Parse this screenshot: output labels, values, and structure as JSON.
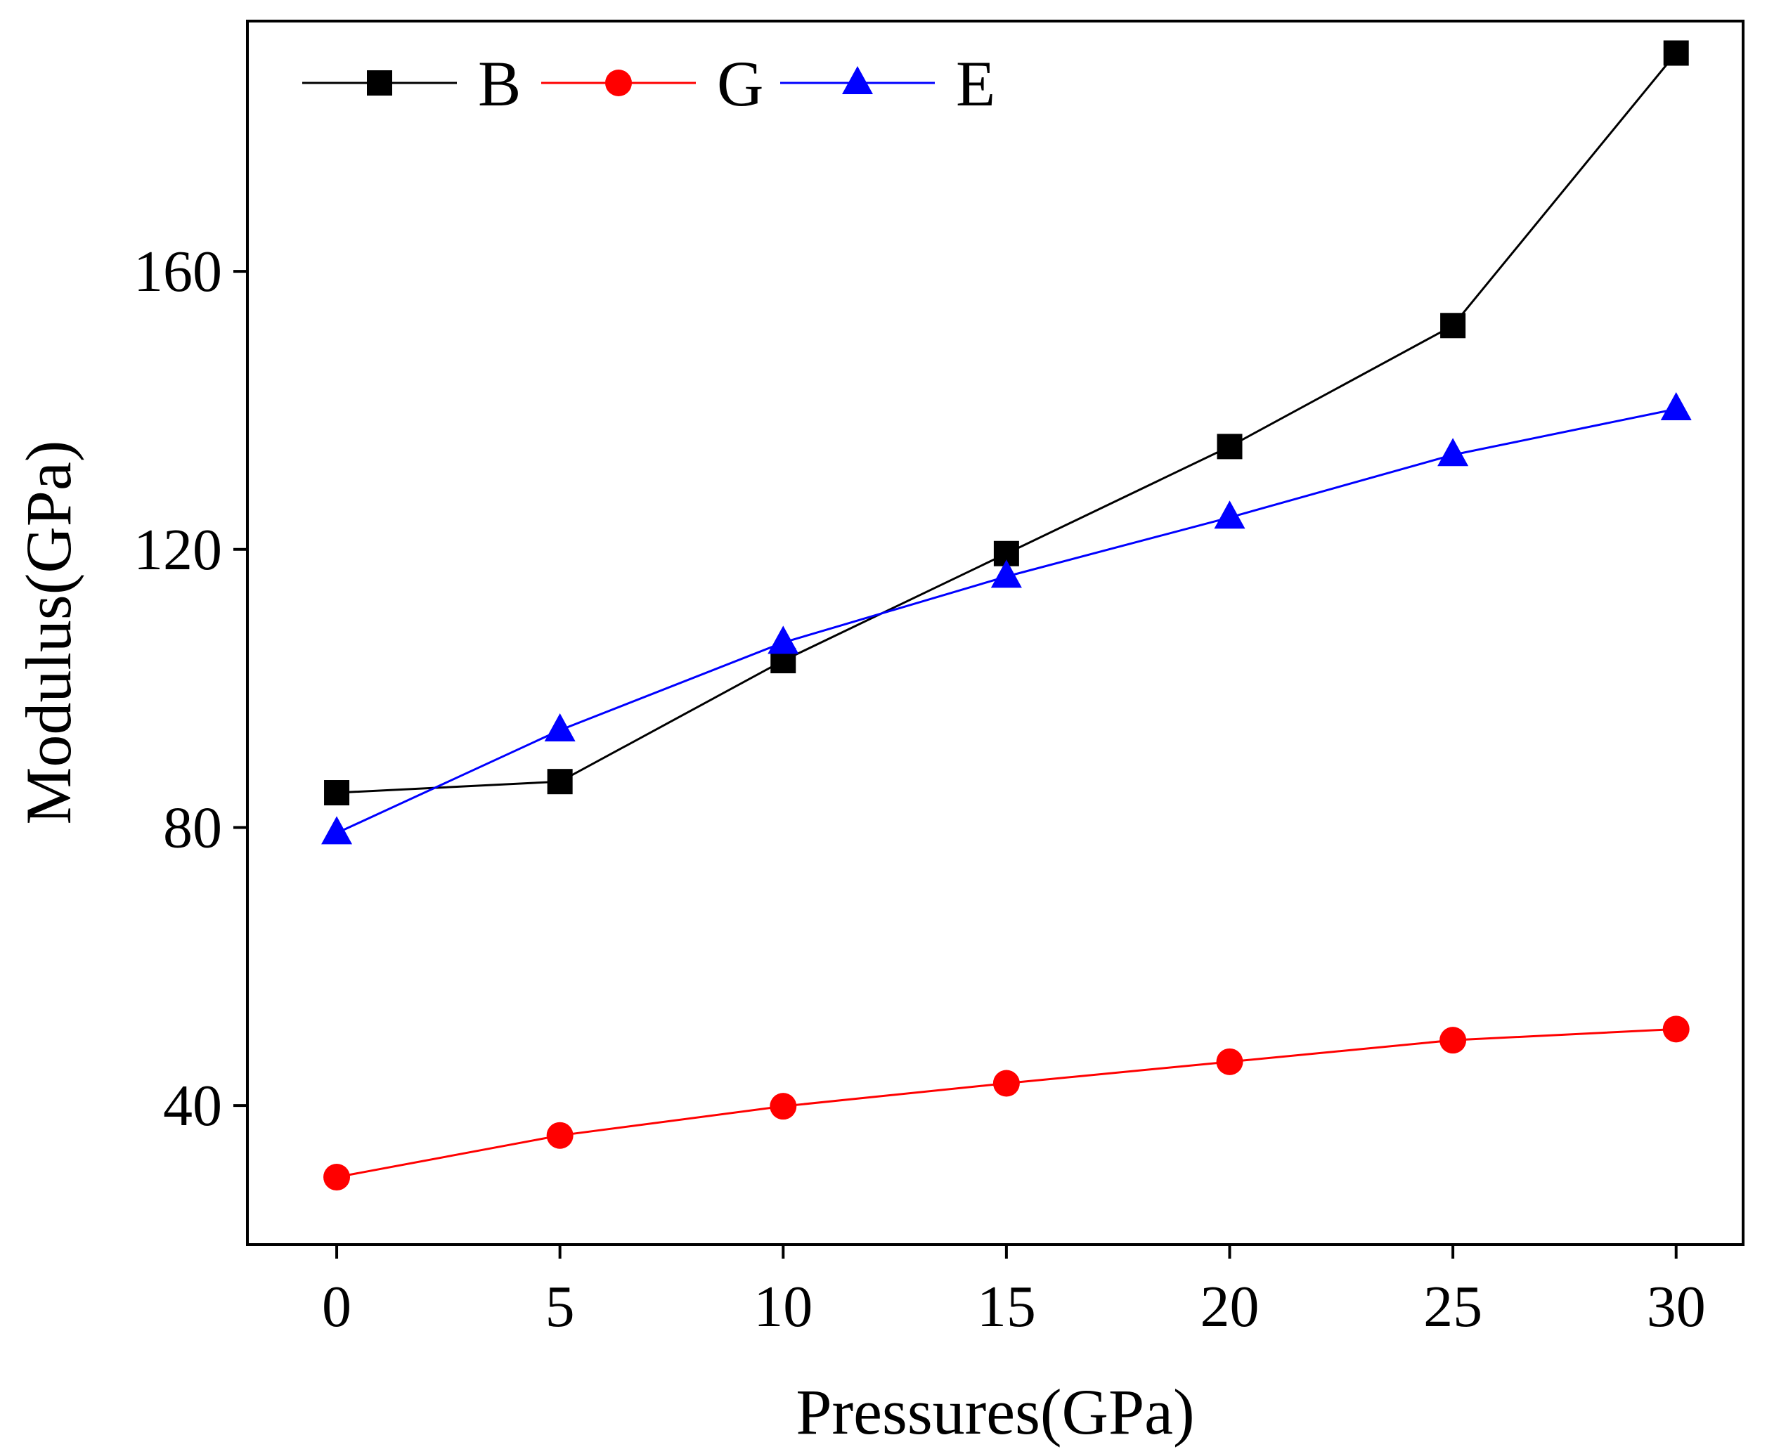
{
  "chart_data": {
    "type": "line",
    "title": "",
    "xlabel": "Pressures(GPa)",
    "ylabel": "Modulus(GPa)",
    "xlim": [
      -2,
      31.5
    ],
    "ylim": [
      20,
      196
    ],
    "x": [
      0,
      5,
      10,
      15,
      20,
      25,
      30
    ],
    "xticks": [
      0,
      5,
      10,
      15,
      20,
      25,
      30
    ],
    "yticks": [
      40,
      80,
      120,
      160
    ],
    "grid": false,
    "legend_position": "top-left",
    "series": [
      {
        "name": "B",
        "color": "#000000",
        "marker": "square",
        "values": [
          85.0,
          86.6,
          104.0,
          119.4,
          134.8,
          152.2,
          191.4
        ]
      },
      {
        "name": "G",
        "color": "#ff0000",
        "marker": "circle",
        "values": [
          29.7,
          35.7,
          39.9,
          43.2,
          46.3,
          49.4,
          51.0
        ]
      },
      {
        "name": "E",
        "color": "#0000ff",
        "marker": "triangle",
        "values": [
          79.2,
          94.0,
          106.6,
          116.1,
          124.6,
          133.6,
          140.2
        ]
      }
    ]
  }
}
